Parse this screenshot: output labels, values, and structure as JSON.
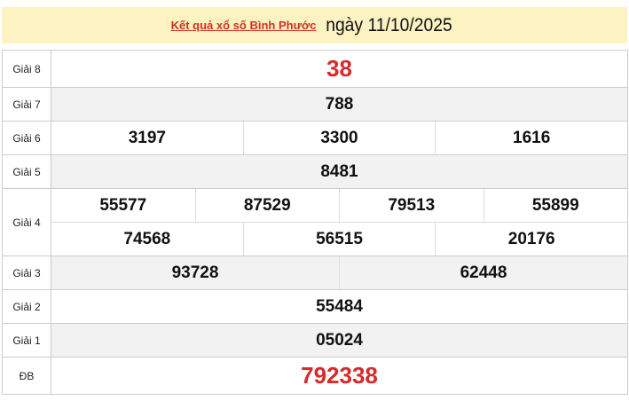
{
  "header": {
    "link_text": "Kết quả xổ số Bình Phước",
    "date_text": "ngày 11/10/2025"
  },
  "colors": {
    "header_bg": "#fcf2c2",
    "accent_red": "#d62b2b"
  },
  "rows": [
    {
      "label": "Giải 8",
      "lines": [
        [
          "38"
        ]
      ],
      "red": true
    },
    {
      "label": "Giải 7",
      "lines": [
        [
          "788"
        ]
      ]
    },
    {
      "label": "Giải 6",
      "lines": [
        [
          "3197",
          "3300",
          "1616"
        ]
      ]
    },
    {
      "label": "Giải 5",
      "lines": [
        [
          "8481"
        ]
      ]
    },
    {
      "label": "Giải 4",
      "lines": [
        [
          "55577",
          "87529",
          "79513",
          "55899"
        ],
        [
          "74568",
          "56515",
          "20176"
        ]
      ]
    },
    {
      "label": "Giải 3",
      "lines": [
        [
          "93728",
          "62448"
        ]
      ]
    },
    {
      "label": "Giải 2",
      "lines": [
        [
          "55484"
        ]
      ]
    },
    {
      "label": "Giải 1",
      "lines": [
        [
          "05024"
        ]
      ]
    },
    {
      "label": "ĐB",
      "lines": [
        [
          "792338"
        ]
      ],
      "red": true
    }
  ]
}
